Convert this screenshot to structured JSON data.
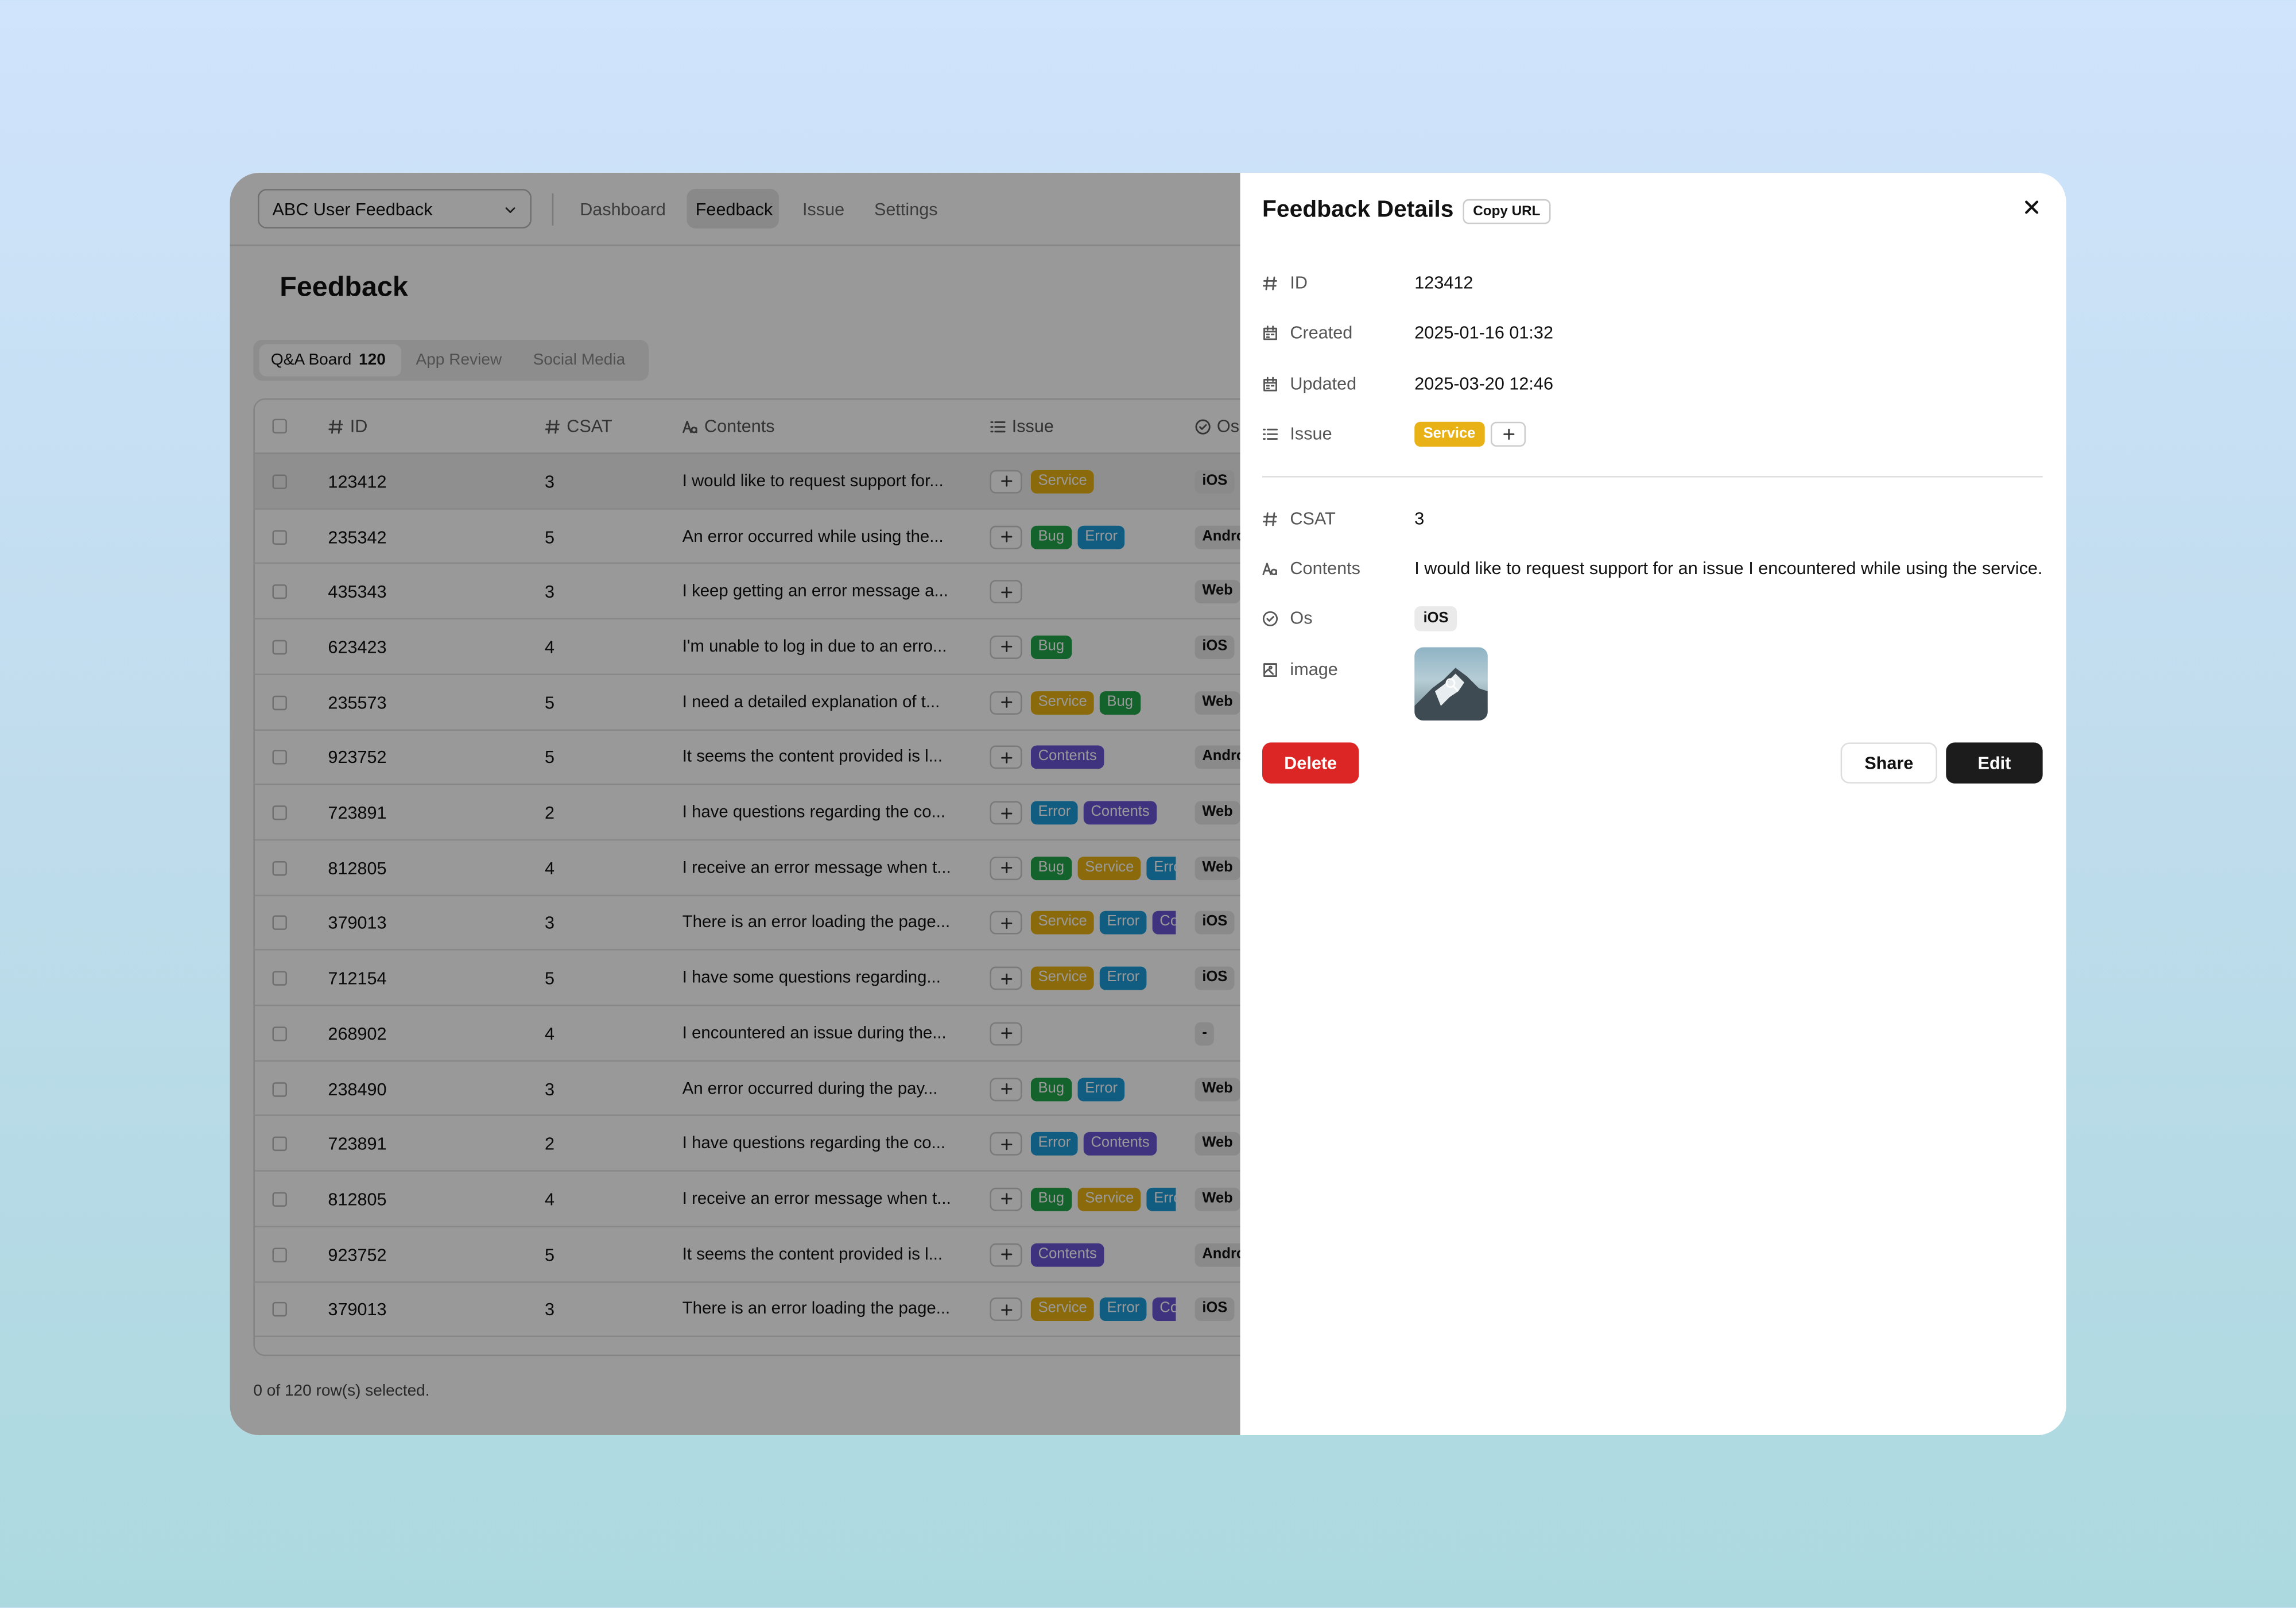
{
  "app": {
    "project_select": "ABC User Feedback",
    "nav": [
      "Dashboard",
      "Feedback",
      "Issue",
      "Settings"
    ]
  },
  "page": {
    "title": "Feedback",
    "tabs": [
      {
        "label": "Q&A Board",
        "count": 120
      },
      {
        "label": "App Review"
      },
      {
        "label": "Social Media"
      }
    ]
  },
  "table": {
    "columns": [
      "ID",
      "CSAT",
      "Contents",
      "Issue",
      "Os"
    ],
    "rows": [
      {
        "id": "123412",
        "csat": 3,
        "contents": "I would like to request support for...",
        "issues": [
          "Service"
        ],
        "os": "iOS"
      },
      {
        "id": "235342",
        "csat": 5,
        "contents": "An error occurred while using the...",
        "issues": [
          "Bug",
          "Error"
        ],
        "os": "Android"
      },
      {
        "id": "435343",
        "csat": 3,
        "contents": "I keep getting an error message a...",
        "issues": [],
        "os": "Web"
      },
      {
        "id": "623423",
        "csat": 4,
        "contents": "I'm unable to log in due to an erro...",
        "issues": [
          "Bug"
        ],
        "os": "iOS"
      },
      {
        "id": "235573",
        "csat": 5,
        "contents": "I need a detailed explanation of t...",
        "issues": [
          "Service",
          "Bug"
        ],
        "os": "Web"
      },
      {
        "id": "923752",
        "csat": 5,
        "contents": "It seems the content provided is l...",
        "issues": [
          "Contents"
        ],
        "os": "Android"
      },
      {
        "id": "723891",
        "csat": 2,
        "contents": "I have questions regarding the co...",
        "issues": [
          "Error",
          "Contents"
        ],
        "os": "Web"
      },
      {
        "id": "812805",
        "csat": 4,
        "contents": "I receive an error message when t...",
        "issues": [
          "Bug",
          "Service",
          "Error"
        ],
        "os": "Web"
      },
      {
        "id": "379013",
        "csat": 3,
        "contents": "There is an error loading the page...",
        "issues": [
          "Service",
          "Error",
          "Contents"
        ],
        "os": "iOS"
      },
      {
        "id": "712154",
        "csat": 5,
        "contents": "I have some questions regarding...",
        "issues": [
          "Service",
          "Error"
        ],
        "os": "iOS"
      },
      {
        "id": "268902",
        "csat": 4,
        "contents": "I encountered an issue during the...",
        "issues": [],
        "os": "-"
      },
      {
        "id": "238490",
        "csat": 3,
        "contents": "An error occurred during the pay...",
        "issues": [
          "Bug",
          "Error"
        ],
        "os": "Web"
      },
      {
        "id": "723891",
        "csat": 2,
        "contents": "I have questions regarding the co...",
        "issues": [
          "Error",
          "Contents"
        ],
        "os": "Web"
      },
      {
        "id": "812805",
        "csat": 4,
        "contents": "I receive an error message when t...",
        "issues": [
          "Bug",
          "Service",
          "Error"
        ],
        "os": "Web"
      },
      {
        "id": "923752",
        "csat": 5,
        "contents": "It seems the content provided is l...",
        "issues": [
          "Contents"
        ],
        "os": "Android"
      },
      {
        "id": "379013",
        "csat": 3,
        "contents": "There is an error loading the page...",
        "issues": [
          "Service",
          "Error",
          "Contents"
        ],
        "os": "iOS"
      }
    ],
    "footer": "0 of 120 row(s) selected."
  },
  "detail": {
    "title": "Feedback Details",
    "copy_url": "Copy URL",
    "fields": [
      {
        "label": "ID",
        "value": "123412"
      },
      {
        "label": "Created",
        "value": "2025-01-16 01:32"
      },
      {
        "label": "Updated",
        "value": "2025-03-20 12:46"
      },
      {
        "label": "Issue",
        "tags": [
          "Service"
        ]
      },
      {
        "label": "CSAT",
        "value": 3
      },
      {
        "label": "Contents",
        "value": "I would like to request support for an issue I encountered while using the service."
      },
      {
        "label": "Os",
        "tags": [
          "iOS"
        ]
      },
      {
        "label": "image"
      }
    ],
    "buttons": [
      "Delete",
      "Share",
      "Edit"
    ]
  }
}
